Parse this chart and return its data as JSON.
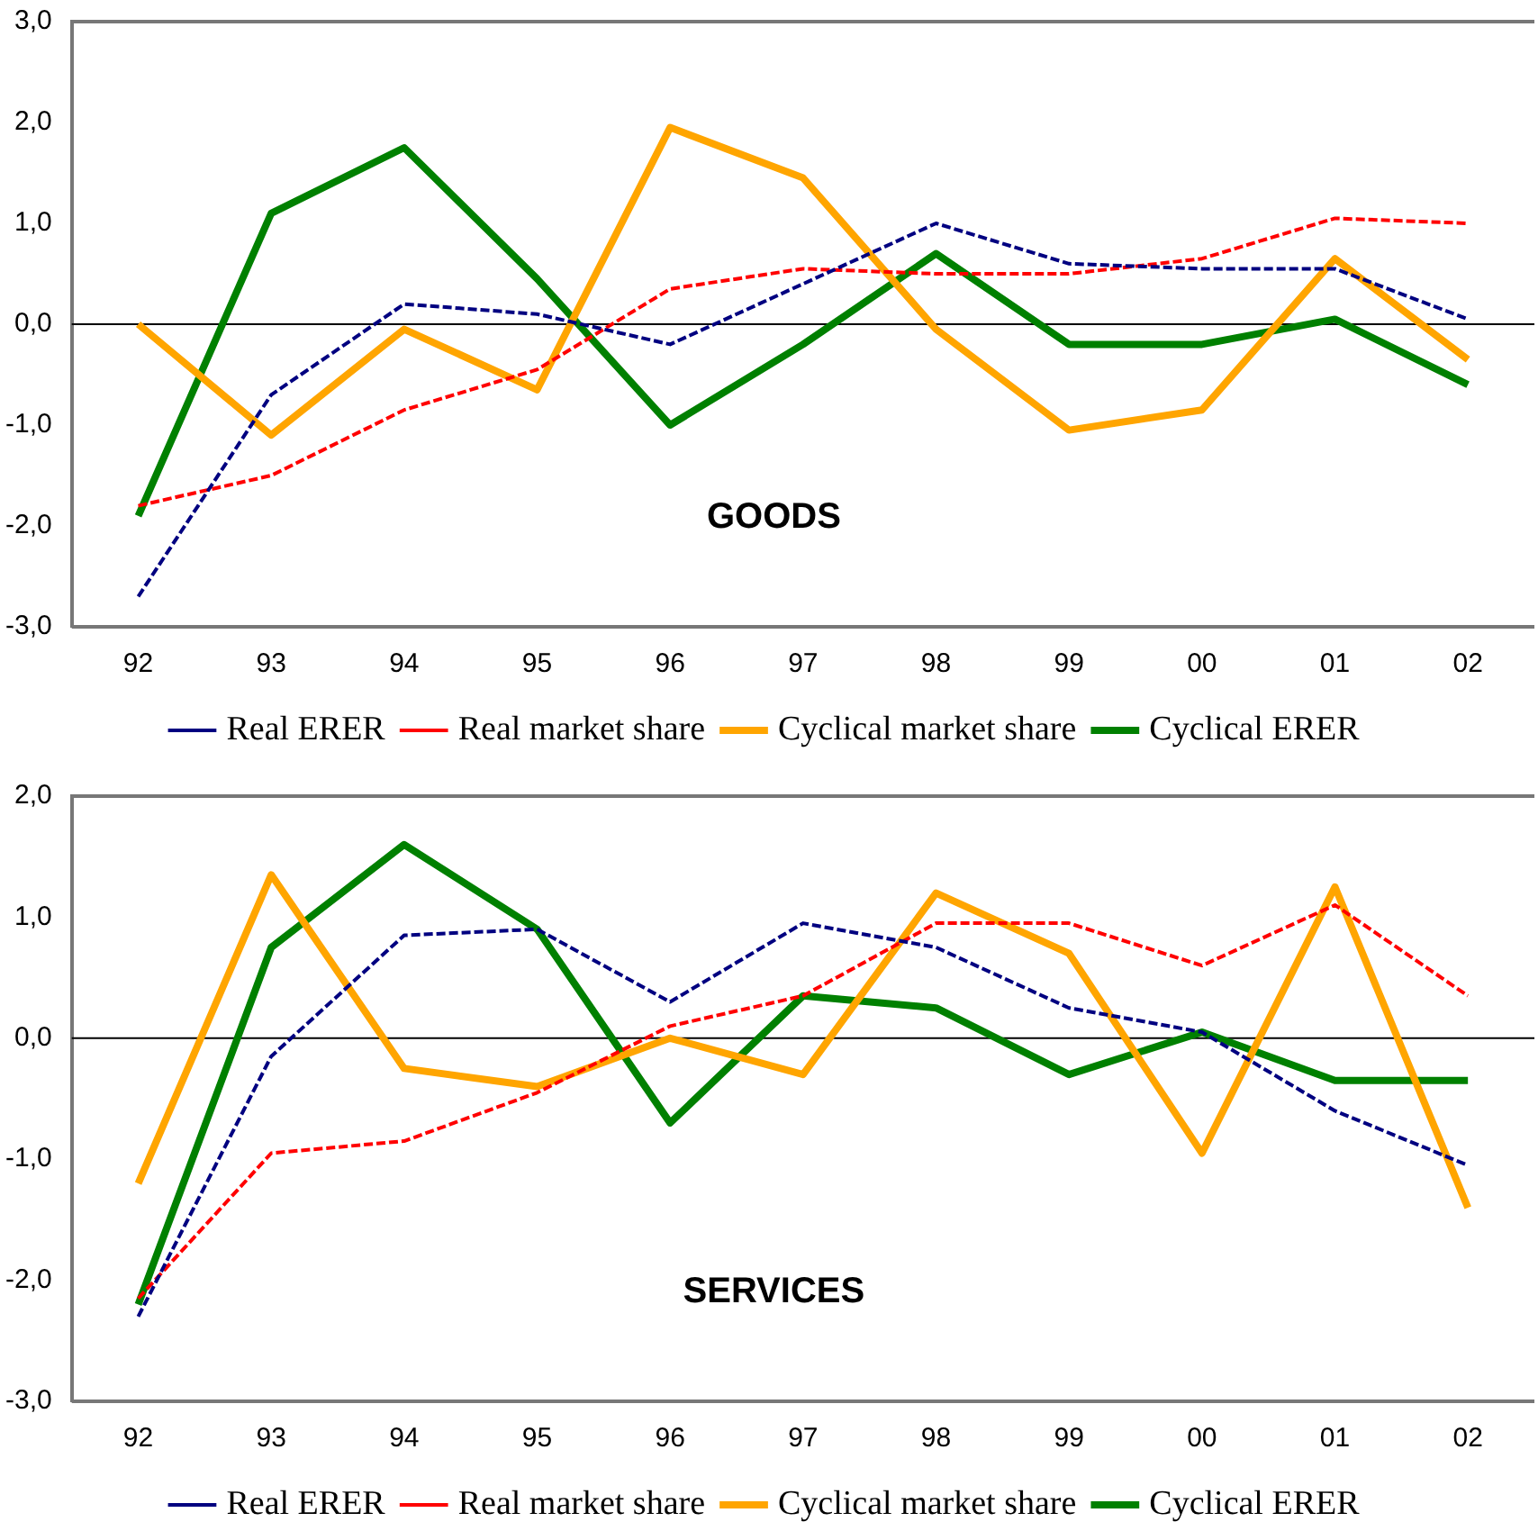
{
  "chart_data": [
    {
      "type": "line",
      "title": "GOODS",
      "ref_lines": [
        {
          "axis": "y",
          "value": 0,
          "color": "#000000"
        }
      ],
      "categories": [
        "92",
        "93",
        "94",
        "95",
        "96",
        "97",
        "98",
        "99",
        "00",
        "01",
        "02"
      ],
      "ylim": [
        -3,
        3
      ],
      "yticks": [
        {
          "value": -3,
          "label": "-3,0"
        },
        {
          "value": -2,
          "label": "-2,0"
        },
        {
          "value": -1,
          "label": "-1,0"
        },
        {
          "value": 0,
          "label": "0,0"
        },
        {
          "value": 1,
          "label": "1,0"
        },
        {
          "value": 2,
          "label": "2,0"
        },
        {
          "value": 3,
          "label": "3,0"
        }
      ],
      "grid": false,
      "legend": "bottom",
      "marker": "none",
      "series": [
        {
          "name": "Real ERER",
          "color": "#000080",
          "line_style": "dashed",
          "values": [
            -2.7,
            -0.7,
            0.2,
            0.1,
            -0.2,
            0.4,
            1.0,
            0.6,
            0.55,
            0.55,
            0.05
          ]
        },
        {
          "name": "Real market share",
          "color": "#ff0000",
          "line_style": "dashed",
          "values": [
            -1.8,
            -1.5,
            -0.85,
            -0.45,
            0.35,
            0.55,
            0.5,
            0.5,
            0.65,
            1.05,
            1.0
          ]
        },
        {
          "name": "Cyclical market share",
          "color": "#ffa500",
          "line_style": "solid",
          "values": [
            0.0,
            -1.1,
            -0.05,
            -0.65,
            1.95,
            1.45,
            -0.05,
            -1.05,
            -0.85,
            0.65,
            -0.35
          ]
        },
        {
          "name": "Cyclical ERER",
          "color": "#008000",
          "line_style": "solid",
          "values": [
            -1.9,
            1.1,
            1.75,
            0.45,
            -1.0,
            -0.2,
            0.7,
            -0.2,
            -0.2,
            0.05,
            -0.6
          ]
        }
      ]
    },
    {
      "type": "line",
      "title": "SERVICES",
      "ref_lines": [
        {
          "axis": "y",
          "value": 0,
          "color": "#000000"
        }
      ],
      "categories": [
        "92",
        "93",
        "94",
        "95",
        "96",
        "97",
        "98",
        "99",
        "00",
        "01",
        "02"
      ],
      "ylim": [
        -3,
        2
      ],
      "yticks": [
        {
          "value": -3,
          "label": "-3,0"
        },
        {
          "value": -2,
          "label": "-2,0"
        },
        {
          "value": -1,
          "label": "-1,0"
        },
        {
          "value": 0,
          "label": "0,0"
        },
        {
          "value": 1,
          "label": "1,0"
        },
        {
          "value": 2,
          "label": "2,0"
        }
      ],
      "grid": false,
      "legend": "bottom",
      "marker": "none",
      "series": [
        {
          "name": "Real ERER",
          "color": "#000080",
          "line_style": "dashed",
          "values": [
            -2.3,
            -0.15,
            0.85,
            0.9,
            0.3,
            0.95,
            0.75,
            0.25,
            0.05,
            -0.6,
            -1.05
          ]
        },
        {
          "name": "Real market share",
          "color": "#ff0000",
          "line_style": "dashed",
          "values": [
            -2.15,
            -0.95,
            -0.85,
            -0.45,
            0.1,
            0.35,
            0.95,
            0.95,
            0.6,
            1.1,
            0.35
          ]
        },
        {
          "name": "Cyclical market share",
          "color": "#ffa500",
          "line_style": "solid",
          "values": [
            -1.2,
            1.35,
            -0.25,
            -0.4,
            0.0,
            -0.3,
            1.2,
            0.7,
            -0.95,
            1.25,
            -1.4
          ]
        },
        {
          "name": "Cyclical ERER",
          "color": "#008000",
          "line_style": "solid",
          "values": [
            -2.2,
            0.75,
            1.6,
            0.9,
            -0.7,
            0.35,
            0.25,
            -0.3,
            0.05,
            -0.35,
            -0.35
          ]
        }
      ]
    }
  ]
}
